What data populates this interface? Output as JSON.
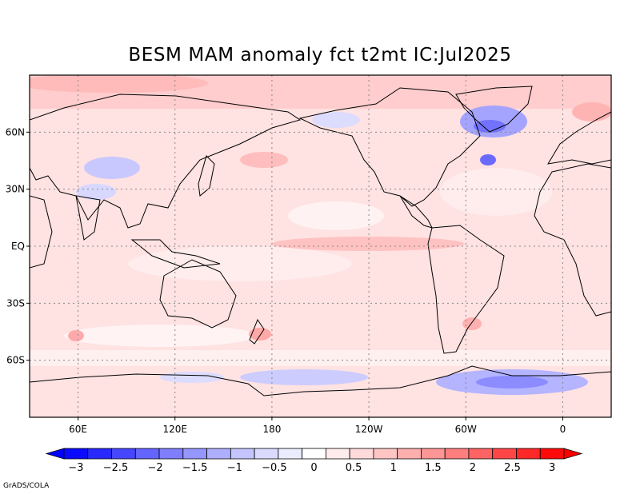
{
  "title": "BESM  MAM anomaly fct t2mt IC:Jul2025",
  "credit": "GrADS/COLA",
  "map": {
    "lat_labels": [
      "60N",
      "30N",
      "EQ",
      "30S",
      "60S"
    ],
    "lon_labels": [
      "60E",
      "120E",
      "180",
      "120W",
      "60W",
      "0"
    ],
    "lat_values": [
      60,
      30,
      0,
      -30,
      -60
    ],
    "lon_values": [
      60,
      120,
      180,
      240,
      300,
      360
    ],
    "lon_range": [
      30,
      390
    ],
    "lat_range": [
      -90,
      90
    ]
  },
  "colorbar": {
    "labels": [
      "−3",
      "−2.5",
      "−2",
      "−1.5",
      "−1",
      "−0.5",
      "0",
      "0.5",
      "1",
      "1.5",
      "2",
      "2.5",
      "3"
    ],
    "colors": [
      "#0a0aff",
      "#2828ff",
      "#4646ff",
      "#6464ff",
      "#7e7eff",
      "#9696ff",
      "#aeaeff",
      "#c4c4ff",
      "#dadaff",
      "#ececff",
      "#ffffff",
      "#ffecec",
      "#ffdada",
      "#ffc4c4",
      "#ffaeae",
      "#ff9696",
      "#ff7e7e",
      "#ff6464",
      "#ff4646",
      "#ff2828",
      "#ff0a0a"
    ],
    "under_color": "#0000ff",
    "over_color": "#ff0000"
  },
  "colors": {
    "ocean_base": "#ffdede",
    "frame": "#000000",
    "grid": "#888888"
  }
}
